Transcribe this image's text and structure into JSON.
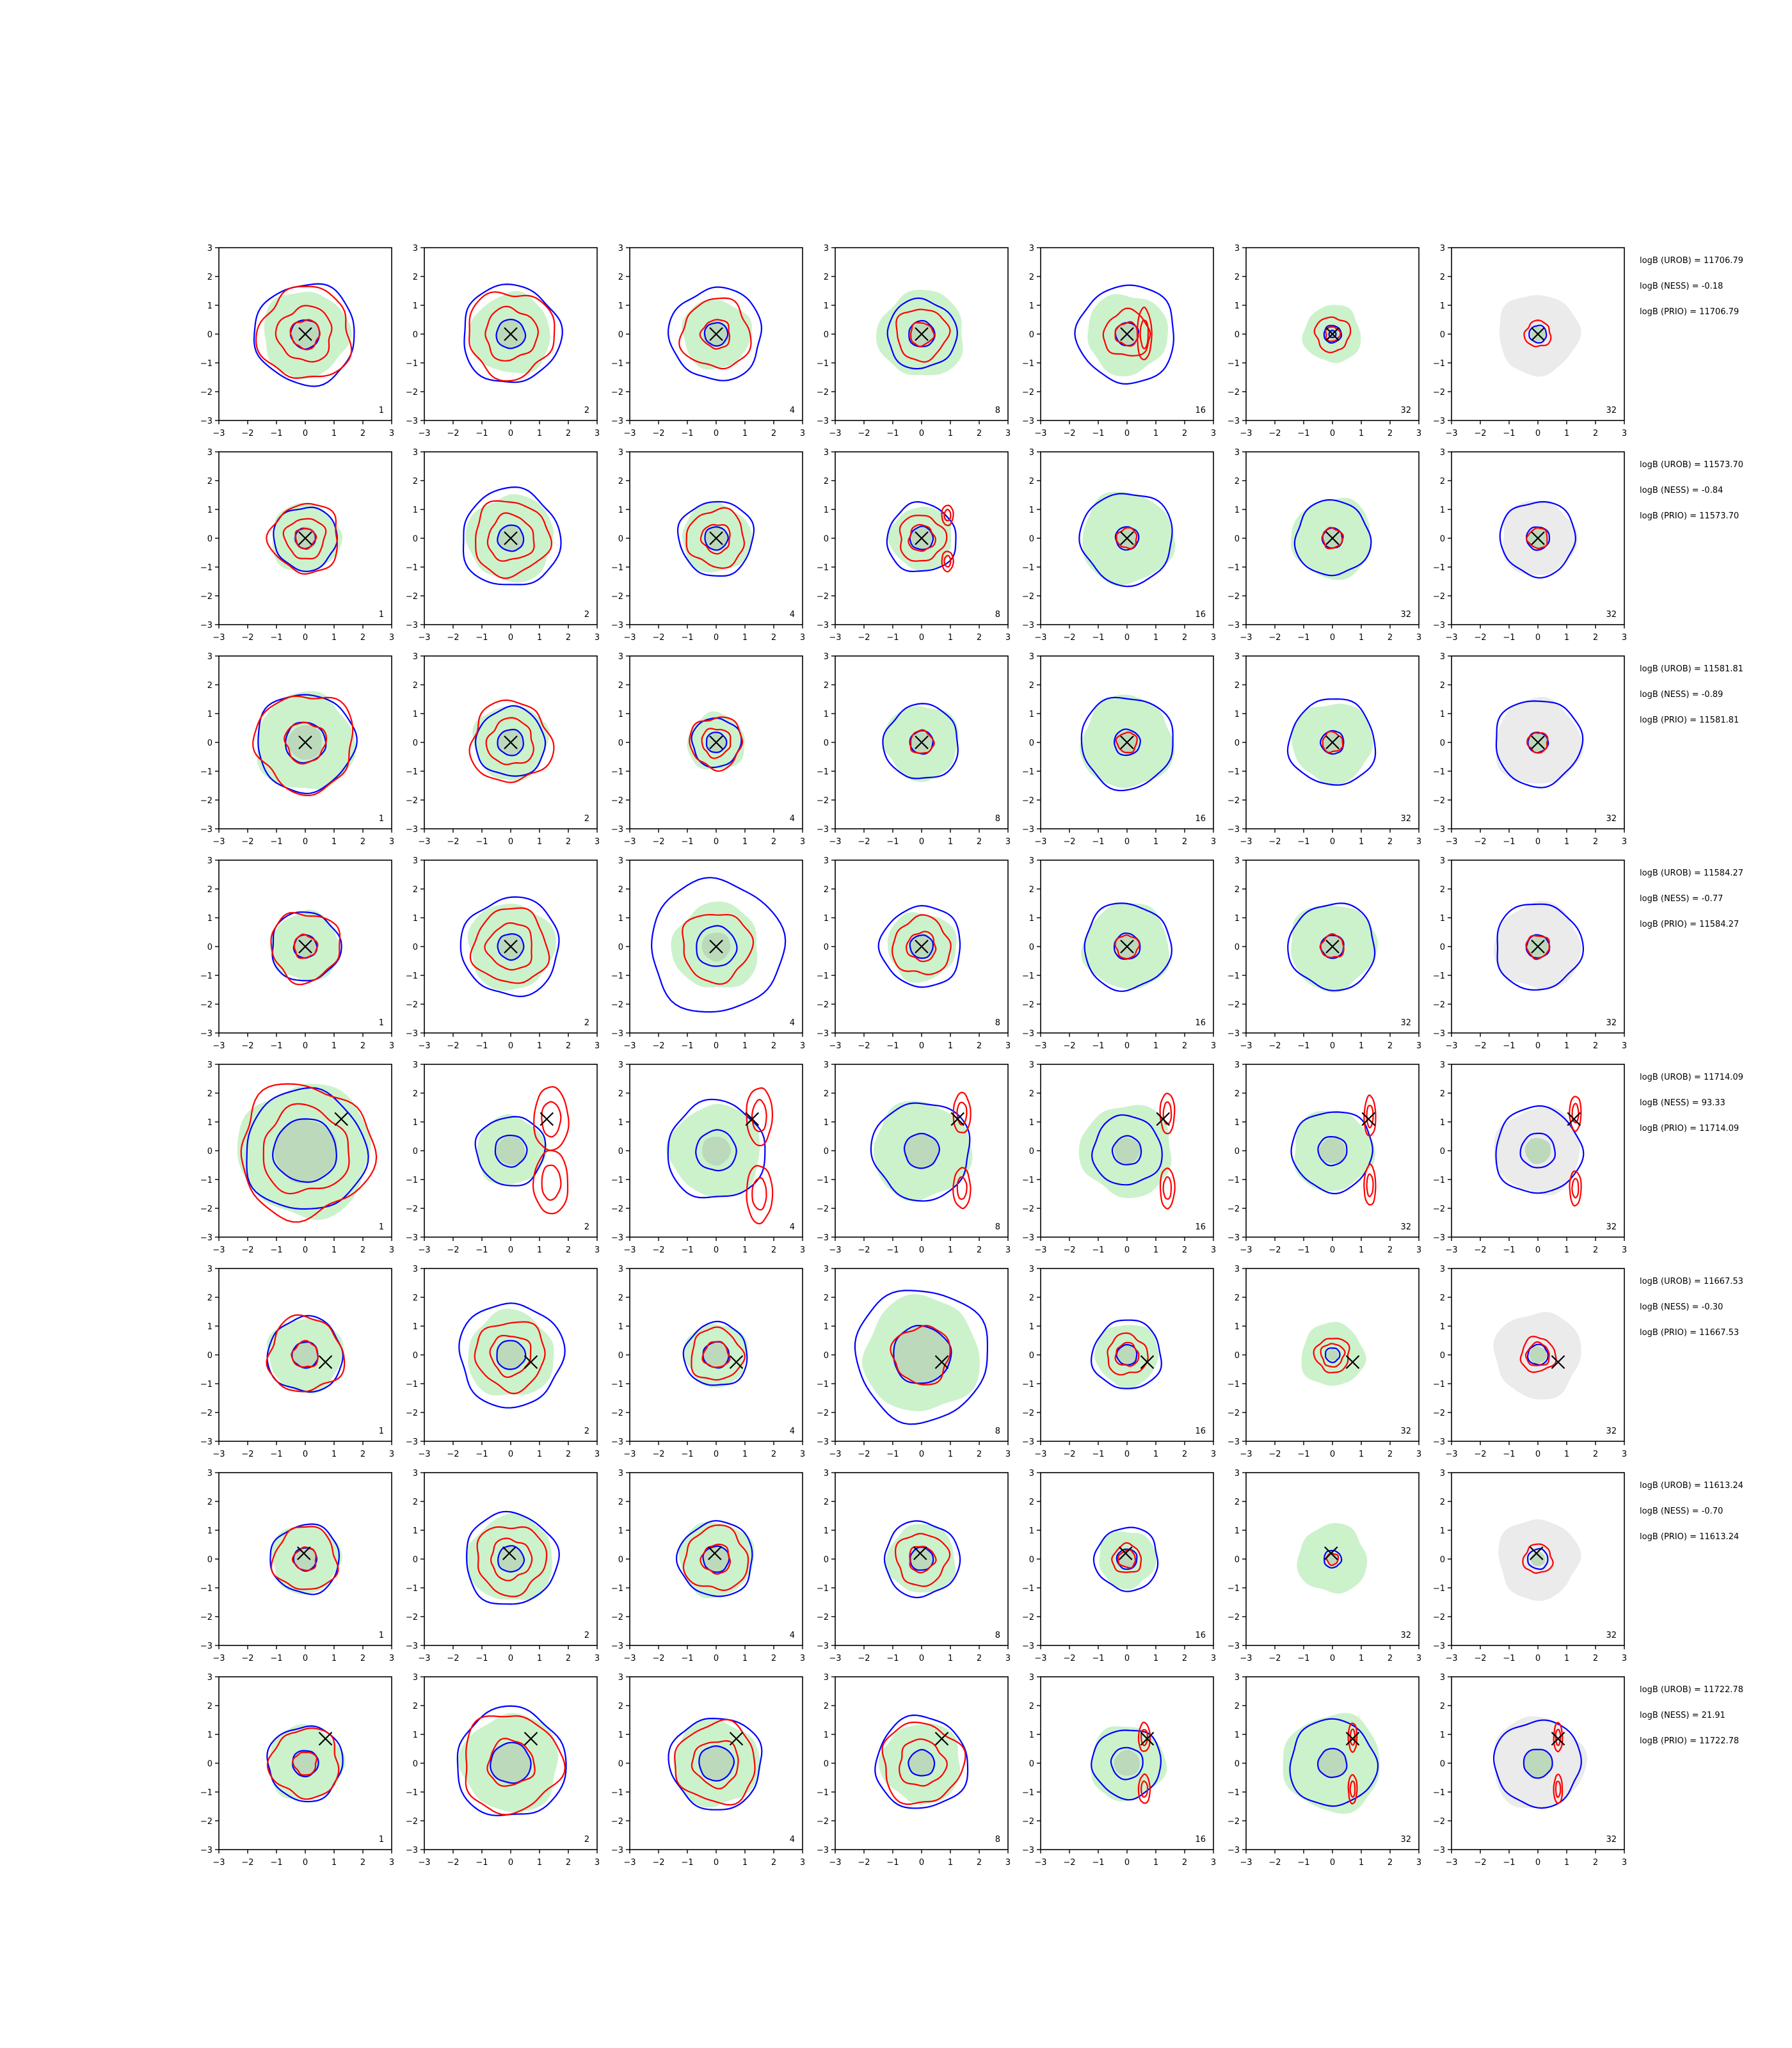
{
  "chart_data": {
    "type": "contour",
    "rows": 8,
    "cols": 7,
    "xlim": [
      -3,
      3
    ],
    "ylim": [
      -3,
      3
    ],
    "ticks": [
      "−3",
      "−2",
      "−1",
      "0",
      "1",
      "2",
      "3"
    ],
    "tick_values": [
      -3,
      -2,
      -1,
      0,
      1,
      2,
      3
    ],
    "panel_labels": [
      "1",
      "2",
      "4",
      "8",
      "16",
      "32",
      "32"
    ],
    "colors": {
      "fill_main": "#ccf2cc",
      "fill_last": "#ebebeb",
      "core": "#bcd9bc",
      "blue": "#0000ff",
      "red": "#ff0000",
      "marker": "#000000"
    },
    "row_annotations": [
      {
        "urob": "logB (UROB) = 11706.79",
        "ness": "logB (NESS) = -0.18",
        "prio": "logB (PRIO) = 11706.79"
      },
      {
        "urob": "logB (UROB) = 11573.70",
        "ness": "logB (NESS) = -0.84",
        "prio": "logB (PRIO) = 11573.70"
      },
      {
        "urob": "logB (UROB) = 11581.81",
        "ness": "logB (NESS) = -0.89",
        "prio": "logB (PRIO) = 11581.81"
      },
      {
        "urob": "logB (UROB) = 11584.27",
        "ness": "logB (NESS) = -0.77",
        "prio": "logB (PRIO) = 11584.27"
      },
      {
        "urob": "logB (UROB) = 11714.09",
        "ness": "logB (NESS) = 93.33",
        "prio": "logB (PRIO) = 11714.09"
      },
      {
        "urob": "logB (UROB) = 11667.53",
        "ness": "logB (NESS) = -0.30",
        "prio": "logB (PRIO) = 11667.53"
      },
      {
        "urob": "logB (UROB) = 11613.24",
        "ness": "logB (NESS) = -0.70",
        "prio": "logB (PRIO) = 11613.24"
      },
      {
        "urob": "logB (UROB) = 11722.78",
        "ness": "logB (NESS) = 21.91",
        "prio": "logB (PRIO) = 11722.78"
      }
    ],
    "markers": [
      {
        "x": 0.0,
        "y": 0.0
      },
      {
        "x": 0.0,
        "y": 0.0
      },
      {
        "x": 0.0,
        "y": 0.0
      },
      {
        "x": 0.0,
        "y": 0.0
      },
      {
        "x": 1.25,
        "y": 1.1
      },
      {
        "x": 0.7,
        "y": -0.25
      },
      {
        "x": -0.05,
        "y": 0.2
      },
      {
        "x": 0.7,
        "y": 0.85
      }
    ],
    "panels": [
      [
        {
          "fill": 1.5,
          "core": 0.5,
          "blue": [
            1.75,
            0.5
          ],
          "red": [
            1.6,
            0.95,
            0.5
          ]
        },
        {
          "fill": 1.4,
          "core": 0.5,
          "blue": [
            1.7,
            0.5
          ],
          "red": [
            1.5,
            0.9
          ]
        },
        {
          "fill": 1.2,
          "core": 0.45,
          "blue": [
            1.6,
            0.4
          ],
          "red": [
            1.2,
            0.5
          ]
        },
        {
          "fill": 1.5,
          "core": 0.45,
          "blue": [
            1.2,
            0.45
          ],
          "red": [
            0.9,
            0.4
          ]
        },
        {
          "fill": 1.4,
          "core": 0.4,
          "blue": [
            1.7,
            0.4
          ],
          "red": [
            0.8,
            0.4
          ],
          "lobes": [
            [
              0.6,
              0,
              0.25,
              0.9
            ]
          ]
        },
        {
          "fill": 1.0,
          "core": 0.2,
          "blue": [
            0.3,
            0.12
          ],
          "red": [
            0.6,
            0.25
          ]
        },
        {
          "fill": 1.4,
          "core": 0.25,
          "blue": [
            0.3
          ],
          "red": [
            0.45
          ],
          "gray": true
        }
      ],
      [
        {
          "fill": 1.2,
          "core": 0.4,
          "blue": [
            1.1,
            0.35
          ],
          "red": [
            1.2,
            0.7,
            0.35
          ]
        },
        {
          "fill": 1.5,
          "core": 0.45,
          "blue": [
            1.7,
            0.45
          ],
          "red": [
            1.3,
            0.8
          ]
        },
        {
          "fill": 1.2,
          "core": 0.4,
          "blue": [
            1.3,
            0.4
          ],
          "red": [
            1.0,
            0.5
          ]
        },
        {
          "fill": 1.1,
          "core": 0.4,
          "blue": [
            1.2,
            0.4
          ],
          "red": [
            0.8,
            0.45
          ],
          "lobes": [
            [
              0.9,
              0.8,
              0.2,
              0.35
            ],
            [
              0.9,
              -0.8,
              0.2,
              0.35
            ]
          ]
        },
        {
          "fill": 1.6,
          "core": 0.35,
          "blue": [
            1.6,
            0.4
          ],
          "red": [
            0.35
          ]
        },
        {
          "fill": 1.4,
          "core": 0.35,
          "blue": [
            1.3,
            0.35
          ],
          "red": [
            0.35
          ]
        },
        {
          "fill": 1.3,
          "core": 0.35,
          "blue": [
            1.3,
            0.4
          ],
          "red": [
            0.35
          ],
          "gray": true
        }
      ],
      [
        {
          "fill": 1.7,
          "core": 0.6,
          "blue": [
            1.7,
            0.7
          ],
          "red": [
            1.7,
            0.7
          ]
        },
        {
          "fill": 1.3,
          "core": 0.45,
          "blue": [
            1.2,
            0.45
          ],
          "red": [
            1.4,
            0.8
          ]
        },
        {
          "fill": 1.0,
          "core": 0.35,
          "blue": [
            0.85,
            0.35
          ],
          "red": [
            0.9,
            0.5
          ]
        },
        {
          "fill": 1.3,
          "core": 0.35,
          "blue": [
            1.3,
            0.4
          ],
          "red": [
            0.4
          ]
        },
        {
          "fill": 1.6,
          "core": 0.4,
          "blue": [
            1.6,
            0.45
          ],
          "red": [
            0.35
          ]
        },
        {
          "fill": 1.4,
          "core": 0.35,
          "blue": [
            1.5,
            0.4
          ],
          "red": [
            0.35
          ]
        },
        {
          "fill": 1.5,
          "core": 0.35,
          "blue": [
            1.5,
            0.35
          ],
          "red": [
            0.35
          ],
          "gray": true
        }
      ],
      [
        {
          "fill": 1.2,
          "core": 0.4,
          "blue": [
            1.2,
            0.4
          ],
          "red": [
            1.2,
            0.4
          ]
        },
        {
          "fill": 1.5,
          "core": 0.45,
          "blue": [
            1.7,
            0.45
          ],
          "red": [
            1.3,
            0.8
          ]
        },
        {
          "fill": 1.5,
          "core": 0.5,
          "blue": [
            2.3,
            0.7
          ],
          "red": [
            1.2
          ]
        },
        {
          "fill": 1.2,
          "core": 0.45,
          "blue": [
            1.4,
            0.4
          ],
          "red": [
            1.0,
            0.5
          ]
        },
        {
          "fill": 1.5,
          "core": 0.4,
          "blue": [
            1.5,
            0.45
          ],
          "red": [
            0.4
          ]
        },
        {
          "fill": 1.5,
          "core": 0.4,
          "blue": [
            1.5,
            0.4
          ],
          "red": [
            0.4
          ]
        },
        {
          "fill": 1.5,
          "core": 0.4,
          "blue": [
            1.5,
            0.4
          ],
          "red": [
            0.4
          ],
          "gray": true
        }
      ],
      [
        {
          "fill": 2.3,
          "core": 1.1,
          "blue": [
            2.1,
            1.1
          ],
          "red": [
            2.3,
            1.5
          ]
        },
        {
          "fill": 1.2,
          "core": 0.5,
          "blue": [
            1.2,
            0.55
          ],
          "red": [],
          "lobes": [
            [
              1.4,
              1.1,
              0.6,
              1.1
            ],
            [
              1.4,
              -1.1,
              0.6,
              1.1
            ]
          ]
        },
        {
          "fill": 1.6,
          "core": 0.5,
          "blue": [
            1.7,
            0.7
          ],
          "red": [],
          "lobes": [
            [
              1.5,
              1.2,
              0.45,
              1.0
            ],
            [
              1.5,
              -1.5,
              0.45,
              1.0
            ]
          ]
        },
        {
          "fill": 1.7,
          "core": 0.6,
          "blue": [
            1.7,
            0.6
          ],
          "red": [],
          "lobes": [
            [
              1.4,
              1.3,
              0.3,
              0.7
            ],
            [
              1.4,
              -1.3,
              0.3,
              0.7
            ]
          ]
        },
        {
          "fill": 1.6,
          "core": 0.45,
          "blue": [
            1.2,
            0.5
          ],
          "red": [],
          "lobes": [
            [
              1.4,
              1.3,
              0.25,
              0.7
            ],
            [
              1.4,
              -1.3,
              0.25,
              0.7
            ]
          ]
        },
        {
          "fill": 1.4,
          "core": 0.45,
          "blue": [
            1.4,
            0.5
          ],
          "red": [],
          "lobes": [
            [
              1.3,
              1.2,
              0.2,
              0.7
            ],
            [
              1.3,
              -1.2,
              0.2,
              0.7
            ]
          ]
        },
        {
          "fill": 1.5,
          "core": 0.45,
          "blue": [
            1.5,
            0.6
          ],
          "red": [],
          "lobes": [
            [
              1.3,
              1.3,
              0.2,
              0.6
            ],
            [
              1.3,
              -1.3,
              0.2,
              0.6
            ]
          ],
          "gray": true
        }
      ],
      [
        {
          "fill": 1.3,
          "core": 0.45,
          "blue": [
            1.3,
            0.45
          ],
          "red": [
            1.3,
            0.45
          ]
        },
        {
          "fill": 1.5,
          "core": 0.5,
          "blue": [
            1.8,
            0.5
          ],
          "red": [
            1.2,
            0.7
          ]
        },
        {
          "fill": 1.1,
          "core": 0.45,
          "blue": [
            1.1,
            0.45
          ],
          "red": [
            0.9,
            0.45
          ]
        },
        {
          "fill": 2.0,
          "core": 1.0,
          "blue": [
            2.3,
            1.0
          ],
          "red": [
            1.0
          ]
        },
        {
          "fill": 1.1,
          "core": 0.35,
          "blue": [
            1.2,
            0.35
          ],
          "red": [
            0.7,
            0.4
          ]
        },
        {
          "fill": 1.1,
          "core": 0.2,
          "blue": [
            0.25
          ],
          "red": [
            0.6,
            0.4
          ]
        },
        {
          "fill": 1.5,
          "core": 0.3,
          "blue": [
            0.35
          ],
          "red": [
            0.6,
            0.4
          ],
          "gray": true
        }
      ],
      [
        {
          "fill": 1.2,
          "core": 0.4,
          "blue": [
            1.2,
            0.4
          ],
          "red": [
            1.1,
            0.4
          ]
        },
        {
          "fill": 1.5,
          "core": 0.45,
          "blue": [
            1.6,
            0.45
          ],
          "red": [
            1.2,
            0.7
          ]
        },
        {
          "fill": 1.3,
          "core": 0.45,
          "blue": [
            1.3,
            0.45
          ],
          "red": [
            1.1,
            0.5
          ]
        },
        {
          "fill": 1.2,
          "core": 0.4,
          "blue": [
            1.3,
            0.4
          ],
          "red": [
            0.9,
            0.45
          ]
        },
        {
          "fill": 1.0,
          "core": 0.3,
          "blue": [
            1.1,
            0.35
          ],
          "red": [
            0.5,
            0.3
          ]
        },
        {
          "fill": 1.2,
          "core": 0.2,
          "blue": [
            0.3
          ],
          "red": [
            0.2
          ]
        },
        {
          "fill": 1.4,
          "core": 0.25,
          "blue": [
            0.35
          ],
          "red": [
            0.5
          ],
          "gray": true
        }
      ],
      [
        {
          "fill": 1.3,
          "core": 0.45,
          "blue": [
            1.3,
            0.45
          ],
          "red": [
            1.2,
            0.4
          ]
        },
        {
          "fill": 1.7,
          "core": 0.7,
          "blue": [
            1.9,
            0.7
          ],
          "red": [
            1.7,
            0.8
          ]
        },
        {
          "fill": 1.5,
          "core": 0.6,
          "blue": [
            1.6,
            0.6
          ],
          "red": [
            1.4,
            0.8
          ]
        },
        {
          "fill": 1.4,
          "core": 0.45,
          "blue": [
            1.6,
            0.45
          ],
          "red": [
            1.4,
            0.8
          ]
        },
        {
          "fill": 1.3,
          "core": 0.45,
          "blue": [
            1.2,
            0.55
          ],
          "red": [],
          "lobes": [
            [
              0.6,
              0.9,
              0.2,
              0.5
            ],
            [
              0.6,
              -0.9,
              0.2,
              0.5
            ]
          ]
        },
        {
          "fill": 1.7,
          "core": 0.5,
          "blue": [
            1.5,
            0.5
          ],
          "red": [],
          "lobes": [
            [
              0.7,
              0.9,
              0.15,
              0.5
            ],
            [
              0.7,
              -0.9,
              0.15,
              0.5
            ]
          ]
        },
        {
          "fill": 1.6,
          "core": 0.5,
          "blue": [
            1.5,
            0.5
          ],
          "red": [],
          "lobes": [
            [
              0.7,
              0.9,
              0.15,
              0.5
            ],
            [
              0.7,
              -0.9,
              0.15,
              0.5
            ]
          ],
          "gray": true
        }
      ]
    ]
  }
}
